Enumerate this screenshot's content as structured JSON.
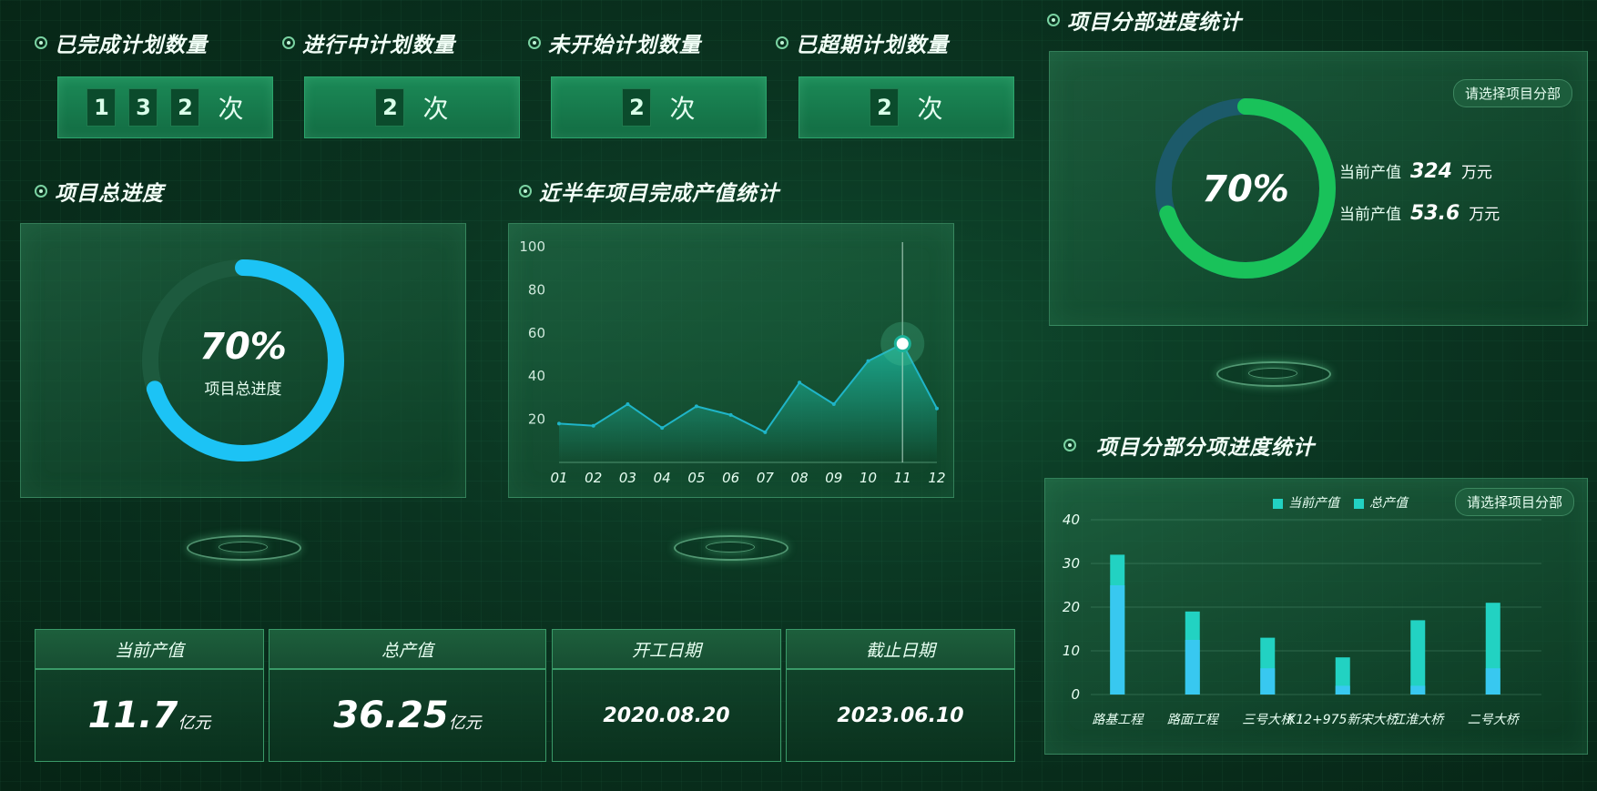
{
  "counters": [
    {
      "label": "已完成计划数量",
      "digits": [
        "1",
        "3",
        "2"
      ],
      "unit": "次"
    },
    {
      "label": "进行中计划数量",
      "digits": [
        "2"
      ],
      "unit": "次"
    },
    {
      "label": "未开始计划数量",
      "digits": [
        "2"
      ],
      "unit": "次"
    },
    {
      "label": "已超期计划数量",
      "digits": [
        "2"
      ],
      "unit": "次"
    }
  ],
  "total_progress": {
    "title": "项目总进度",
    "percent_text": "70%",
    "label": "项目总进度",
    "fraction": 0.7,
    "color": "#1cc3f5"
  },
  "line_section": {
    "title": "近半年项目完成产值统计"
  },
  "branch_progress": {
    "title": "项目分部进度统计",
    "select_label": "请选择项目分部",
    "percent_text": "70%",
    "fraction": 0.7,
    "color": "#19c25a",
    "rows": [
      {
        "label": "当前产值",
        "value": "324",
        "unit": "万元"
      },
      {
        "label": "当前产值",
        "value": "53.6",
        "unit": "万元"
      }
    ]
  },
  "bar_section": {
    "title": "项目分部分项进度统计",
    "select_label": "请选择项目分部"
  },
  "info_cards": [
    {
      "label": "当前产值",
      "value": "11.7",
      "unit": "亿元"
    },
    {
      "label": "总产值",
      "value": "36.25",
      "unit": "亿元"
    },
    {
      "label": "开工日期",
      "value": "2020.08.20",
      "unit": ""
    },
    {
      "label": "截止日期",
      "value": "2023.06.10",
      "unit": ""
    }
  ],
  "chart_data": [
    {
      "type": "area",
      "categories": [
        "01",
        "02",
        "03",
        "04",
        "05",
        "06",
        "07",
        "08",
        "09",
        "10",
        "11",
        "12"
      ],
      "values": [
        18,
        17,
        27,
        16,
        26,
        22,
        14,
        37,
        27,
        47,
        55,
        25
      ],
      "ylim": [
        0,
        100
      ],
      "yticks": [
        "20",
        "40",
        "60",
        "80",
        "100"
      ],
      "highlight_index": 10,
      "colors": {
        "line": "#1fb5c8",
        "fill": "#1bb39a"
      }
    },
    {
      "type": "bar",
      "categories": [
        "路基工程",
        "路面工程",
        "三号大桥",
        "K12+975新宋大桥",
        "江淮大桥",
        "二号大桥"
      ],
      "series": [
        {
          "name": "当前产值",
          "values": [
            25,
            12.5,
            6,
            2,
            2,
            6
          ],
          "color": "#38c8f0"
        },
        {
          "name": "总产值",
          "values": [
            32,
            19,
            13,
            8.5,
            17,
            21
          ],
          "color": "#22d2c2"
        }
      ],
      "ylim": [
        0,
        40
      ],
      "yticks": [
        "0",
        "10",
        "20",
        "30",
        "40"
      ]
    }
  ]
}
